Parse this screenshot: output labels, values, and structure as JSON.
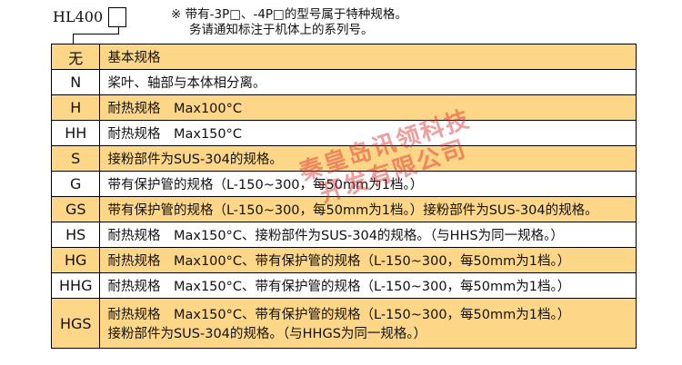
{
  "header": {
    "model": "HL400",
    "note_line1": "※ 带有-3P□、-4P□的型号属于特种规格。",
    "note_line2": "务请通知标注于机体上的系列号。"
  },
  "rows": [
    {
      "code": "无",
      "desc": "基本规格",
      "color": "orange"
    },
    {
      "code": "N",
      "desc": "桨叶、轴部与本体相分离。",
      "color": "white"
    },
    {
      "code": "H",
      "desc": "耐热规格　Max100°C",
      "color": "orange"
    },
    {
      "code": "HH",
      "desc": "耐热规格　Max150°C",
      "color": "white"
    },
    {
      "code": "S",
      "desc": "接粉部件为SUS-304的规格。",
      "color": "orange"
    },
    {
      "code": "G",
      "desc": "带有保护管的规格（L-150~300，每50mm为1档。）",
      "color": "white"
    },
    {
      "code": "GS",
      "desc": "带有保护管的规格（L-150~300，每50mm为1档。）接粉部件为SUS-304的规格。",
      "color": "orange"
    },
    {
      "code": "HS",
      "desc": "耐热规格　Max150°C、接粉部件为SUS-304的规格。（与HHS为同一规格。）",
      "color": "white"
    },
    {
      "code": "HG",
      "desc": "耐热规格　Max100°C、带有保护管的规格（L-150~300，每50mm为1档。）",
      "color": "orange"
    },
    {
      "code": "HHG",
      "desc": "耐热规格　Max150°C、带有保护管的规格（L-150~300，每50mm为1档。）",
      "color": "white"
    },
    {
      "code": "HGS",
      "desc": "耐热规格　Max150°C、带有保护管的规格（L-150~300，每50mm为1档。）",
      "desc2": "接粉部件为SUS-304的规格。（与HHGS为同一规格。）",
      "color": "orange"
    }
  ],
  "watermark": {
    "line1": "秦皇岛讯领科技",
    "line2": "开发有限公司"
  },
  "colors": {
    "orange": "#fdd688",
    "white": "#ffffff"
  }
}
